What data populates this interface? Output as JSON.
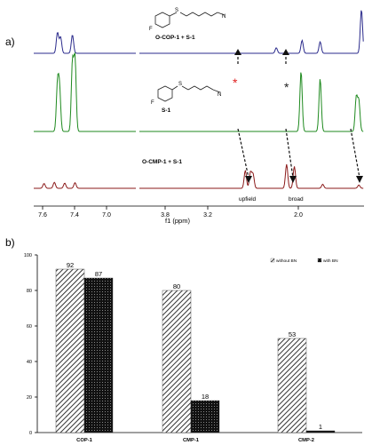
{
  "panel_labels": {
    "a": "a)",
    "b": "b)"
  },
  "colors": {
    "spec1": "#2b2b8c",
    "spec2": "#1f8a1f",
    "spec3": "#8b1a1a",
    "star_red": "#e02020"
  },
  "chart_data": [
    {
      "type": "line",
      "title": "",
      "xlabel": "f1 (ppm)",
      "ylabel": "",
      "xlim": [
        7.8,
        1.4
      ],
      "x_reversed": true,
      "xticks": [
        "7.6",
        "7.4",
        "7.0",
        "3.8",
        "3.2",
        "2.0"
      ],
      "series": [
        {
          "name": "O-COP-1 + S-1",
          "color": "#2b2b8c",
          "peaks": [
            {
              "x": 7.34,
              "h": 0.45
            },
            {
              "x": 7.28,
              "h": 0.35
            },
            {
              "x": 7.05,
              "h": 0.4
            },
            {
              "x": 3.1,
              "h": 0.12
            },
            {
              "x": 2.6,
              "h": 0.28
            },
            {
              "x": 2.25,
              "h": 0.25
            },
            {
              "x": 1.45,
              "h": 0.95
            }
          ]
        },
        {
          "name": "S-1",
          "color": "#1f8a1f",
          "peaks": [
            {
              "x": 7.34,
              "h": 0.6
            },
            {
              "x": 7.3,
              "h": 0.55
            },
            {
              "x": 7.05,
              "h": 0.9
            },
            {
              "x": 7.0,
              "h": 0.95
            },
            {
              "x": 2.62,
              "h": 0.8
            },
            {
              "x": 2.25,
              "h": 0.7
            },
            {
              "x": 1.55,
              "h": 0.45
            },
            {
              "x": 1.5,
              "h": 0.4
            }
          ]
        },
        {
          "name": "O-CMP-1 + S-1",
          "color": "#8b1a1a",
          "peaks": [
            {
              "x": 7.6,
              "h": 0.12
            },
            {
              "x": 7.4,
              "h": 0.15
            },
            {
              "x": 7.2,
              "h": 0.13
            },
            {
              "x": 7.0,
              "h": 0.14
            },
            {
              "x": 3.7,
              "h": 0.45
            },
            {
              "x": 3.6,
              "h": 0.4
            },
            {
              "x": 3.55,
              "h": 0.35
            },
            {
              "x": 2.9,
              "h": 0.6
            },
            {
              "x": 2.75,
              "h": 0.55
            },
            {
              "x": 2.2,
              "h": 0.1
            },
            {
              "x": 1.5,
              "h": 0.08
            }
          ]
        }
      ],
      "annotations": [
        "upfield",
        "broad"
      ]
    },
    {
      "type": "bar",
      "title": "",
      "xlabel": "",
      "ylabel": "",
      "ylim": [
        0,
        100
      ],
      "yticks": [
        0,
        20,
        40,
        60,
        80,
        100
      ],
      "categories": [
        "COP-1",
        "CMP-1",
        "CMP-2"
      ],
      "legend_position": "top-right",
      "series": [
        {
          "name": "without BN",
          "values": [
            92,
            80,
            53
          ],
          "pattern": "hatch"
        },
        {
          "name": "with BN",
          "values": [
            87,
            18,
            1
          ],
          "pattern": "dots"
        }
      ],
      "data_labels": [
        [
          "92",
          "80",
          "53"
        ],
        [
          "87",
          "18",
          "1"
        ]
      ]
    }
  ]
}
